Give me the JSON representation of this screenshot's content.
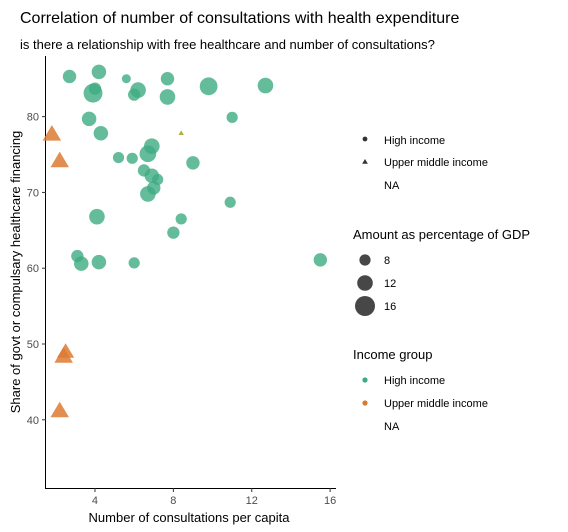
{
  "chart_data": {
    "type": "scatter",
    "title": "Correlation of number of consultations with health expenditure",
    "subtitle": "is there a relationship with free healthcare and number of consultations?",
    "xlabel": "Number of consultations per capita",
    "ylabel": "Share of govt or compulsary healthcare financing",
    "xlim": [
      1.5,
      16.3
    ],
    "ylim": [
      31,
      88
    ],
    "xticks": [
      4,
      8,
      12,
      16
    ],
    "yticks": [
      40,
      50,
      60,
      70,
      80
    ],
    "grid": false,
    "legend_placement": "right",
    "shape_legend": {
      "entries": [
        {
          "label": "High income",
          "shape": "circle"
        },
        {
          "label": "Upper middle income",
          "shape": "triangle"
        },
        {
          "label": "NA",
          "shape": "none"
        }
      ]
    },
    "size_legend": {
      "title": "Amount as percentage of GDP",
      "values": [
        8,
        12,
        16
      ]
    },
    "color_legend": {
      "title": "Income group",
      "entries": [
        {
          "label": "High income",
          "color": "#3fab82"
        },
        {
          "label": "Upper middle income",
          "color": "#dd7a32"
        },
        {
          "label": "NA",
          "color": "none"
        }
      ]
    },
    "series": [
      {
        "name": "High income",
        "shape": "circle",
        "color": "#3fab82",
        "points": [
          {
            "x": 2.7,
            "y": 85.3,
            "gdp": 10
          },
          {
            "x": 4.2,
            "y": 85.9,
            "gdp": 11
          },
          {
            "x": 5.6,
            "y": 85.0,
            "gdp": 6
          },
          {
            "x": 7.7,
            "y": 85.0,
            "gdp": 10
          },
          {
            "x": 4.0,
            "y": 83.7,
            "gdp": 9
          },
          {
            "x": 3.9,
            "y": 83.1,
            "gdp": 15
          },
          {
            "x": 6.2,
            "y": 83.5,
            "gdp": 12
          },
          {
            "x": 6.0,
            "y": 82.9,
            "gdp": 9
          },
          {
            "x": 7.7,
            "y": 82.6,
            "gdp": 12
          },
          {
            "x": 9.8,
            "y": 84.0,
            "gdp": 14
          },
          {
            "x": 12.7,
            "y": 84.1,
            "gdp": 12
          },
          {
            "x": 3.7,
            "y": 79.7,
            "gdp": 11
          },
          {
            "x": 11.0,
            "y": 79.9,
            "gdp": 8
          },
          {
            "x": 4.3,
            "y": 77.8,
            "gdp": 11
          },
          {
            "x": 6.9,
            "y": 76.1,
            "gdp": 12
          },
          {
            "x": 6.7,
            "y": 75.1,
            "gdp": 13
          },
          {
            "x": 5.2,
            "y": 74.6,
            "gdp": 8
          },
          {
            "x": 5.9,
            "y": 74.5,
            "gdp": 8
          },
          {
            "x": 9.0,
            "y": 73.9,
            "gdp": 10
          },
          {
            "x": 6.5,
            "y": 72.9,
            "gdp": 9
          },
          {
            "x": 6.9,
            "y": 72.2,
            "gdp": 11
          },
          {
            "x": 7.2,
            "y": 71.7,
            "gdp": 8
          },
          {
            "x": 7.0,
            "y": 70.6,
            "gdp": 10
          },
          {
            "x": 6.7,
            "y": 69.8,
            "gdp": 12
          },
          {
            "x": 10.9,
            "y": 68.7,
            "gdp": 8
          },
          {
            "x": 4.1,
            "y": 66.8,
            "gdp": 12
          },
          {
            "x": 8.4,
            "y": 66.5,
            "gdp": 8
          },
          {
            "x": 8.0,
            "y": 64.7,
            "gdp": 9
          },
          {
            "x": 3.1,
            "y": 61.6,
            "gdp": 9
          },
          {
            "x": 3.3,
            "y": 60.6,
            "gdp": 11
          },
          {
            "x": 4.2,
            "y": 60.8,
            "gdp": 11
          },
          {
            "x": 6.0,
            "y": 60.7,
            "gdp": 8
          },
          {
            "x": 15.5,
            "y": 61.1,
            "gdp": 10
          }
        ]
      },
      {
        "name": "Upper middle income",
        "shape": "triangle",
        "color": "#dd7a32",
        "points": [
          {
            "x": 1.8,
            "y": 77.6,
            "gdp": 12
          },
          {
            "x": 2.2,
            "y": 74.1,
            "gdp": 12
          },
          {
            "x": 2.5,
            "y": 48.9,
            "gdp": 11
          },
          {
            "x": 2.4,
            "y": 48.3,
            "gdp": 12
          },
          {
            "x": 2.2,
            "y": 41.1,
            "gdp": 12
          }
        ]
      },
      {
        "name": "NA",
        "shape": "triangle",
        "color": "#a6a31c",
        "points": [
          {
            "x": 8.4,
            "y": 77.8,
            "gdp": 2
          }
        ]
      }
    ]
  }
}
